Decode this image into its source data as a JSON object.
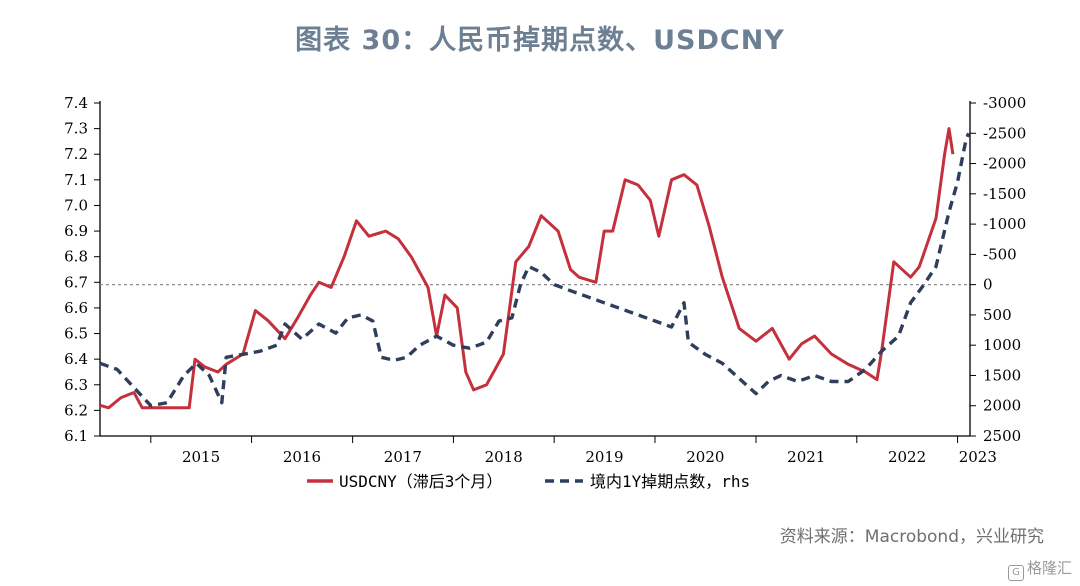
{
  "title": "图表 30：人民币掉期点数、USDCNY",
  "source": "资料来源：Macrobond，兴业研究",
  "watermark": "格隆汇",
  "colors": {
    "title": "#6d8093",
    "usdcny": "#c5303d",
    "swap": "#2f3e5c",
    "zero_line": "#8c8c8c",
    "axis": "#000000"
  },
  "chart_data": {
    "type": "line",
    "x_ticks": [
      "2015",
      "2016",
      "2017",
      "2018",
      "2019",
      "2020",
      "2021",
      "2022",
      "2023"
    ],
    "xlim": [
      "2014-07-01",
      "2023-02-15"
    ],
    "y_left": {
      "ticks": [
        "6.1",
        "6.2",
        "6.3",
        "6.4",
        "6.5",
        "6.6",
        "6.7",
        "6.8",
        "6.9",
        "7.0",
        "7.1",
        "7.2",
        "7.3",
        "7.4"
      ],
      "lim": [
        6.1,
        7.4
      ]
    },
    "y_right": {
      "ticks": [
        "-3000",
        "-2500",
        "-2000",
        "-1500",
        "-1000",
        "-500",
        "0",
        "500",
        "1000",
        "1500",
        "2000",
        "2500"
      ],
      "lim": [
        -3000,
        2500
      ],
      "inverted": true
    },
    "zero_line": {
      "axis": "right",
      "value": 0,
      "style": "dotted"
    },
    "series": [
      {
        "name": "USDCNY（滞后3个月）",
        "axis": "left",
        "style": "solid",
        "points": [
          [
            "2014-07-01",
            6.22
          ],
          [
            "2014-08-01",
            6.21
          ],
          [
            "2014-09-15",
            6.25
          ],
          [
            "2014-11-01",
            6.27
          ],
          [
            "2014-12-01",
            6.21
          ],
          [
            "2015-03-01",
            6.21
          ],
          [
            "2015-05-20",
            6.21
          ],
          [
            "2015-06-10",
            6.4
          ],
          [
            "2015-07-15",
            6.37
          ],
          [
            "2015-09-01",
            6.35
          ],
          [
            "2015-10-01",
            6.38
          ],
          [
            "2015-12-01",
            6.42
          ],
          [
            "2016-01-15",
            6.59
          ],
          [
            "2016-03-01",
            6.55
          ],
          [
            "2016-05-01",
            6.48
          ],
          [
            "2016-06-15",
            6.56
          ],
          [
            "2016-08-01",
            6.65
          ],
          [
            "2016-09-01",
            6.7
          ],
          [
            "2016-10-15",
            6.68
          ],
          [
            "2016-12-01",
            6.8
          ],
          [
            "2017-01-15",
            6.94
          ],
          [
            "2017-03-01",
            6.88
          ],
          [
            "2017-05-01",
            6.9
          ],
          [
            "2017-06-15",
            6.87
          ],
          [
            "2017-08-01",
            6.8
          ],
          [
            "2017-10-01",
            6.68
          ],
          [
            "2017-11-01",
            6.49
          ],
          [
            "2017-12-01",
            6.65
          ],
          [
            "2018-01-15",
            6.6
          ],
          [
            "2018-02-15",
            6.35
          ],
          [
            "2018-03-15",
            6.28
          ],
          [
            "2018-05-01",
            6.3
          ],
          [
            "2018-06-01",
            6.36
          ],
          [
            "2018-07-01",
            6.42
          ],
          [
            "2018-08-15",
            6.78
          ],
          [
            "2018-10-01",
            6.84
          ],
          [
            "2018-11-15",
            6.96
          ],
          [
            "2019-01-15",
            6.9
          ],
          [
            "2019-03-01",
            6.75
          ],
          [
            "2019-04-01",
            6.72
          ],
          [
            "2019-06-01",
            6.7
          ],
          [
            "2019-07-01",
            6.9
          ],
          [
            "2019-08-01",
            6.9
          ],
          [
            "2019-09-15",
            7.1
          ],
          [
            "2019-11-01",
            7.08
          ],
          [
            "2019-12-15",
            7.02
          ],
          [
            "2020-01-15",
            6.88
          ],
          [
            "2020-03-01",
            7.1
          ],
          [
            "2020-04-15",
            7.12
          ],
          [
            "2020-06-01",
            7.08
          ],
          [
            "2020-07-15",
            6.92
          ],
          [
            "2020-09-01",
            6.72
          ],
          [
            "2020-11-01",
            6.52
          ],
          [
            "2021-01-01",
            6.47
          ],
          [
            "2021-03-01",
            6.52
          ],
          [
            "2021-05-01",
            6.4
          ],
          [
            "2021-06-15",
            6.46
          ],
          [
            "2021-08-01",
            6.49
          ],
          [
            "2021-10-01",
            6.42
          ],
          [
            "2021-12-01",
            6.38
          ],
          [
            "2022-02-01",
            6.35
          ],
          [
            "2022-03-15",
            6.32
          ],
          [
            "2022-04-01",
            6.43
          ],
          [
            "2022-05-15",
            6.78
          ],
          [
            "2022-07-15",
            6.72
          ],
          [
            "2022-08-15",
            6.76
          ],
          [
            "2022-10-15",
            6.95
          ],
          [
            "2022-11-15",
            7.2
          ],
          [
            "2022-12-01",
            7.3
          ],
          [
            "2022-12-15",
            7.2
          ]
        ]
      },
      {
        "name": "境内1Y掉期点数，rhs",
        "axis": "right",
        "style": "dashed",
        "points": [
          [
            "2014-07-01",
            1300
          ],
          [
            "2014-09-01",
            1400
          ],
          [
            "2014-11-01",
            1700
          ],
          [
            "2015-01-01",
            2000
          ],
          [
            "2015-03-01",
            1950
          ],
          [
            "2015-05-01",
            1500
          ],
          [
            "2015-06-15",
            1300
          ],
          [
            "2015-08-01",
            1500
          ],
          [
            "2015-09-15",
            1950
          ],
          [
            "2015-10-01",
            1200
          ],
          [
            "2015-12-01",
            1150
          ],
          [
            "2016-02-01",
            1100
          ],
          [
            "2016-04-01",
            1000
          ],
          [
            "2016-05-01",
            650
          ],
          [
            "2016-07-01",
            900
          ],
          [
            "2016-09-01",
            650
          ],
          [
            "2016-11-01",
            800
          ],
          [
            "2016-12-15",
            550
          ],
          [
            "2017-02-01",
            500
          ],
          [
            "2017-03-15",
            600
          ],
          [
            "2017-04-15",
            1200
          ],
          [
            "2017-06-01",
            1250
          ],
          [
            "2017-07-15",
            1200
          ],
          [
            "2017-09-01",
            1000
          ],
          [
            "2017-11-01",
            850
          ],
          [
            "2018-01-01",
            1000
          ],
          [
            "2018-03-01",
            1050
          ],
          [
            "2018-05-01",
            950
          ],
          [
            "2018-06-15",
            600
          ],
          [
            "2018-08-01",
            550
          ],
          [
            "2018-09-01",
            0
          ],
          [
            "2018-10-01",
            -300
          ],
          [
            "2018-11-15",
            -200
          ],
          [
            "2019-01-01",
            0
          ],
          [
            "2019-03-01",
            100
          ],
          [
            "2019-05-01",
            200
          ],
          [
            "2019-07-01",
            300
          ],
          [
            "2019-09-01",
            400
          ],
          [
            "2019-11-01",
            500
          ],
          [
            "2020-01-01",
            600
          ],
          [
            "2020-03-01",
            700
          ],
          [
            "2020-04-15",
            300
          ],
          [
            "2020-05-01",
            950
          ],
          [
            "2020-07-01",
            1150
          ],
          [
            "2020-09-01",
            1300
          ],
          [
            "2020-11-01",
            1550
          ],
          [
            "2021-01-01",
            1800
          ],
          [
            "2021-02-15",
            1600
          ],
          [
            "2021-04-01",
            1500
          ],
          [
            "2021-06-01",
            1600
          ],
          [
            "2021-08-01",
            1500
          ],
          [
            "2021-10-01",
            1600
          ],
          [
            "2021-12-01",
            1600
          ],
          [
            "2022-02-01",
            1400
          ],
          [
            "2022-04-01",
            1100
          ],
          [
            "2022-06-01",
            850
          ],
          [
            "2022-07-15",
            300
          ],
          [
            "2022-09-01",
            0
          ],
          [
            "2022-10-15",
            -300
          ],
          [
            "2022-12-01",
            -1200
          ],
          [
            "2023-01-01",
            -1700
          ],
          [
            "2023-02-01",
            -2400
          ],
          [
            "2023-02-10",
            -2500
          ]
        ]
      }
    ],
    "legend": {
      "position": "bottom-center"
    }
  }
}
